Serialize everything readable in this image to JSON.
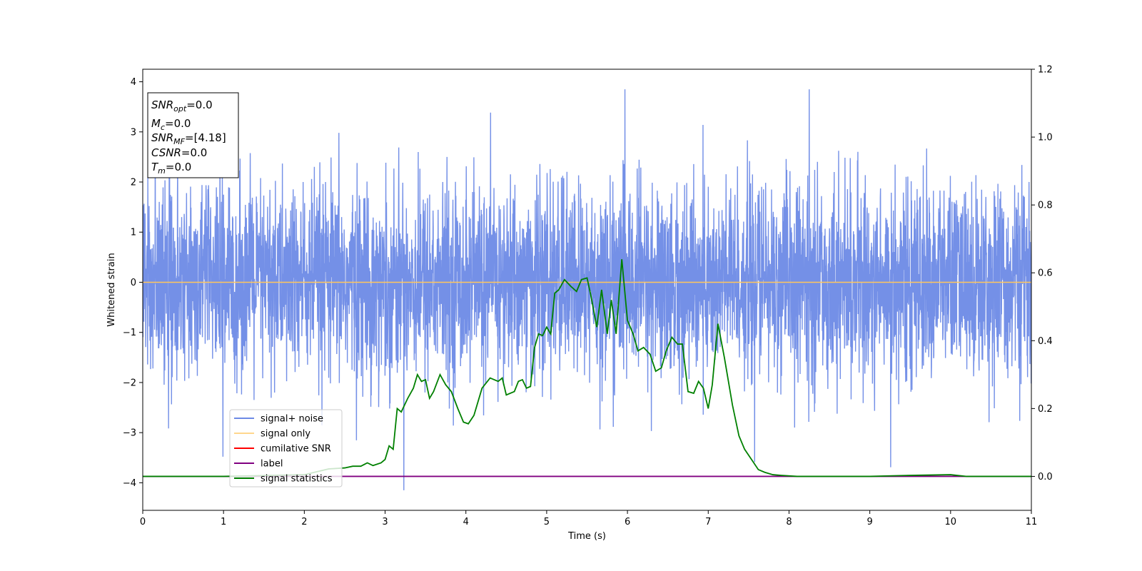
{
  "chart_data": {
    "type": "line",
    "xlabel": "Time (s)",
    "ylabel": "Whitened strain",
    "xlim": [
      0,
      11
    ],
    "ylim": [
      -4.55,
      4.25
    ],
    "y2lim": [
      -0.1,
      1.2
    ],
    "x_ticks": [
      0,
      1,
      2,
      3,
      4,
      5,
      6,
      7,
      8,
      9,
      10,
      11
    ],
    "y_ticks": [
      -4,
      -3,
      -2,
      -1,
      0,
      1,
      2,
      3,
      4
    ],
    "y2_ticks": [
      0.0,
      0.2,
      0.4,
      0.6,
      0.8,
      1.0,
      1.2
    ],
    "grid": false,
    "legend_position": "lower-left",
    "series": [
      {
        "name": "signal+ noise",
        "color": "#6d8ae6",
        "axis": "left",
        "kind": "whitened strain noise, approx. band -2.5 to 2.5 with spikes up to ~3.9 and down to ~-4.2"
      },
      {
        "name": "signal only",
        "color": "#ffc65c",
        "axis": "left",
        "values_constant": 0.0
      },
      {
        "name": "cumilative SNR",
        "color": "#ff0000",
        "axis": "right"
      },
      {
        "name": "label",
        "color": "#800080",
        "axis": "right",
        "values_constant": 0.0
      },
      {
        "name": "signal statistics",
        "color": "#008000",
        "axis": "right",
        "x": [
          0,
          1.0,
          2.0,
          2.3,
          2.5,
          2.6,
          2.7,
          2.78,
          2.85,
          2.95,
          3.0,
          3.05,
          3.1,
          3.15,
          3.2,
          3.28,
          3.35,
          3.4,
          3.45,
          3.5,
          3.55,
          3.6,
          3.68,
          3.75,
          3.82,
          3.9,
          3.97,
          4.03,
          4.1,
          4.2,
          4.3,
          4.4,
          4.45,
          4.5,
          4.6,
          4.65,
          4.7,
          4.75,
          4.8,
          4.85,
          4.9,
          4.95,
          5.0,
          5.05,
          5.1,
          5.15,
          5.22,
          5.3,
          5.37,
          5.43,
          5.5,
          5.55,
          5.62,
          5.68,
          5.75,
          5.8,
          5.86,
          5.93,
          6.0,
          6.07,
          6.13,
          6.2,
          6.28,
          6.35,
          6.42,
          6.48,
          6.55,
          6.62,
          6.68,
          6.75,
          6.82,
          6.88,
          6.94,
          7.0,
          7.05,
          7.12,
          7.2,
          7.3,
          7.38,
          7.45,
          7.55,
          7.62,
          7.7,
          7.8,
          7.9,
          8.1,
          8.5,
          9.0,
          9.5,
          10.0,
          10.2,
          11.0
        ],
        "values": [
          0.0,
          0.0,
          0.005,
          0.022,
          0.025,
          0.03,
          0.03,
          0.04,
          0.032,
          0.04,
          0.05,
          0.09,
          0.08,
          0.2,
          0.19,
          0.23,
          0.26,
          0.3,
          0.28,
          0.285,
          0.23,
          0.25,
          0.3,
          0.27,
          0.25,
          0.2,
          0.16,
          0.155,
          0.18,
          0.26,
          0.29,
          0.28,
          0.29,
          0.24,
          0.25,
          0.28,
          0.285,
          0.26,
          0.265,
          0.38,
          0.42,
          0.415,
          0.44,
          0.42,
          0.54,
          0.55,
          0.58,
          0.56,
          0.545,
          0.58,
          0.585,
          0.53,
          0.44,
          0.55,
          0.42,
          0.52,
          0.42,
          0.64,
          0.46,
          0.42,
          0.37,
          0.38,
          0.36,
          0.31,
          0.32,
          0.37,
          0.41,
          0.39,
          0.39,
          0.25,
          0.245,
          0.28,
          0.26,
          0.2,
          0.27,
          0.45,
          0.35,
          0.21,
          0.12,
          0.08,
          0.045,
          0.02,
          0.012,
          0.005,
          0.003,
          0.0,
          0.0,
          0.0,
          0.003,
          0.005,
          0.0,
          0.0
        ]
      }
    ],
    "annotation_lines": [
      {
        "math": "SNR",
        "sub": "opt",
        "rest": "=0.0"
      },
      {
        "math": "M",
        "sub": "c",
        "rest": "=0.0"
      },
      {
        "math": "SNR",
        "sub": "MF",
        "rest": "=[4.18]"
      },
      {
        "math": "CSNR",
        "sub": "",
        "rest": "=0.0"
      },
      {
        "math": "T",
        "sub": "m",
        "rest": "=0.0"
      }
    ]
  }
}
